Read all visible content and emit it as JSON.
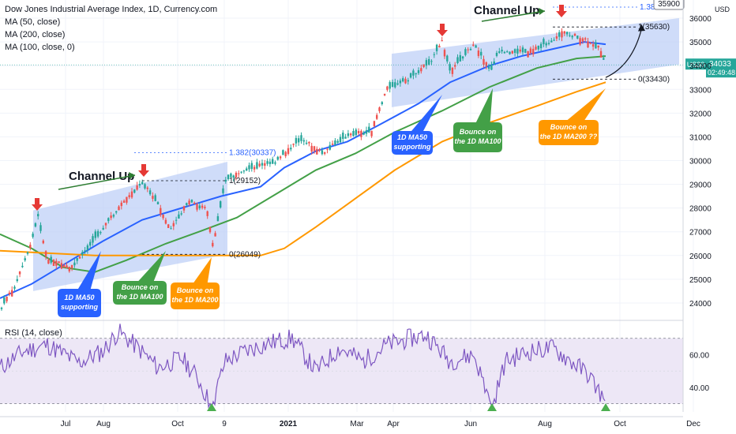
{
  "legend": {
    "title": "Dow Jones Industrial Average Index, 1D, Currency.com",
    "ma50": "MA (50, close)",
    "ma200": "MA (200, close)",
    "ma100": "MA (100, close, 0)"
  },
  "rsi": {
    "title": "RSI (14, close)",
    "ticks": [
      "60.00",
      "40.00"
    ],
    "tick_values": [
      60,
      40
    ],
    "upper": 70,
    "lower": 30
  },
  "price_axis": {
    "unit": "USD",
    "ticks": [
      "36000",
      "35000",
      "34000",
      "33000",
      "32000",
      "31000",
      "30000",
      "29000",
      "28000",
      "27000",
      "26000",
      "25000",
      "24000"
    ],
    "tick_values": [
      36000,
      35000,
      34000,
      33000,
      32000,
      31000,
      30000,
      29000,
      28000,
      27000,
      26000,
      25000,
      24000
    ],
    "last_price_label": "34033",
    "last_price_value": 34033,
    "ticker_tag": "US30",
    "countdown": "02:49:48",
    "target_flag": "35900",
    "top_fib": "1.382",
    "colors": {
      "last_price": "#26a69a",
      "flag_border": "#787b86"
    }
  },
  "time_axis": {
    "labels": [
      "Jul",
      "Aug",
      "Oct",
      "9",
      "2021",
      "Mar",
      "Apr",
      "Jun",
      "Aug",
      "Oct",
      "Dec"
    ],
    "bold": [
      "2021"
    ]
  },
  "annotations": {
    "channel_up_1": "Channel Up",
    "channel_up_2": "Channel Up",
    "fib1": "1.382(30337)",
    "fib1_value": 30337,
    "fib1_one": "1(29152)",
    "fib1_one_value": 29152,
    "fib1_zero": "0(26049)",
    "fib1_zero_value": 26049,
    "fib2_one": "1(35630)",
    "fib2_one_value": 35630,
    "fib2_zero": "0(33430)",
    "fib2_zero_value": 33430,
    "callout_ma50_1": [
      "1D MA50",
      "supporting"
    ],
    "callout_ma100_1": [
      "Bounce on",
      "the 1D MA100"
    ],
    "callout_ma200_1": [
      "Bounce on",
      "the 1D MA200"
    ],
    "callout_ma50_2": [
      "1D MA50",
      "supporting"
    ],
    "callout_ma100_2": [
      "Bounce on",
      "the 1D MA100"
    ],
    "callout_ma200_2": [
      "Bounce on",
      "the 1D MA200 ??"
    ]
  },
  "colors": {
    "up": "#26a69a",
    "down": "#ef5350",
    "ma50": "#2962ff",
    "ma100": "#43a047",
    "ma200": "#ff9800",
    "channel": "#bbcdf7",
    "rsi": "#7e57c2",
    "rsi_band": "#ede7f6",
    "callout_blue": "#2962ff",
    "callout_green": "#43a047",
    "callout_orange": "#ff9800",
    "arrow_red": "#e53935",
    "arrow_green_text": "#2e7d32",
    "signal_triangle": "#4caf50"
  },
  "chart_data": {
    "type": "candlestick",
    "title": "Dow Jones Industrial Average Index, 1D, Currency.com",
    "series": [
      {
        "name": "MA (50, close)",
        "points": [
          [
            0,
            24200
          ],
          [
            40,
            24800
          ],
          [
            80,
            25600
          ],
          [
            130,
            26600
          ],
          [
            180,
            27500
          ],
          [
            230,
            28000
          ],
          [
            280,
            28500
          ],
          [
            330,
            28900
          ],
          [
            360,
            29700
          ],
          [
            400,
            30400
          ],
          [
            440,
            30800
          ],
          [
            480,
            31500
          ],
          [
            530,
            32400
          ],
          [
            570,
            33300
          ],
          [
            620,
            34000
          ],
          [
            660,
            34400
          ],
          [
            700,
            34700
          ],
          [
            740,
            35000
          ],
          [
            767,
            34900
          ]
        ]
      },
      {
        "name": "MA (100, close, 0)",
        "points": [
          [
            0,
            26900
          ],
          [
            40,
            26300
          ],
          [
            80,
            25500
          ],
          [
            120,
            25300
          ],
          [
            160,
            25800
          ],
          [
            210,
            26500
          ],
          [
            260,
            27100
          ],
          [
            300,
            27600
          ],
          [
            350,
            28600
          ],
          [
            400,
            29600
          ],
          [
            450,
            30300
          ],
          [
            500,
            31200
          ],
          [
            560,
            32100
          ],
          [
            620,
            33100
          ],
          [
            680,
            33900
          ],
          [
            730,
            34300
          ],
          [
            767,
            34400
          ]
        ]
      },
      {
        "name": "MA (200, close)",
        "points": [
          [
            0,
            26200
          ],
          [
            60,
            26100
          ],
          [
            120,
            26000
          ],
          [
            200,
            26000
          ],
          [
            280,
            26000
          ],
          [
            330,
            26000
          ],
          [
            360,
            26300
          ],
          [
            400,
            27200
          ],
          [
            450,
            28400
          ],
          [
            500,
            29600
          ],
          [
            560,
            30800
          ],
          [
            620,
            31600
          ],
          [
            680,
            32300
          ],
          [
            730,
            32900
          ],
          [
            767,
            33300
          ]
        ]
      },
      {
        "name": "RSI (14, close)",
        "points": [
          [
            0,
            52
          ],
          [
            30,
            62
          ],
          [
            60,
            66
          ],
          [
            100,
            55
          ],
          [
            130,
            62
          ],
          [
            150,
            74
          ],
          [
            175,
            64
          ],
          [
            200,
            52
          ],
          [
            230,
            58
          ],
          [
            250,
            46
          ],
          [
            268,
            28
          ],
          [
            285,
            56
          ],
          [
            310,
            62
          ],
          [
            340,
            67
          ],
          [
            370,
            70
          ],
          [
            400,
            50
          ],
          [
            430,
            64
          ],
          [
            460,
            56
          ],
          [
            490,
            66
          ],
          [
            520,
            70
          ],
          [
            540,
            72
          ],
          [
            570,
            56
          ],
          [
            600,
            60
          ],
          [
            623,
            28
          ],
          [
            640,
            56
          ],
          [
            670,
            62
          ],
          [
            700,
            64
          ],
          [
            720,
            57
          ],
          [
            745,
            48
          ],
          [
            767,
            31
          ]
        ]
      }
    ],
    "x_range": [
      0,
      932
    ],
    "ylim_price": [
      23300,
      36500
    ],
    "ylim_rsi": [
      25,
      80
    ],
    "signals": [
      {
        "x": 268
      },
      {
        "x": 623
      },
      {
        "x": 767
      }
    ]
  }
}
